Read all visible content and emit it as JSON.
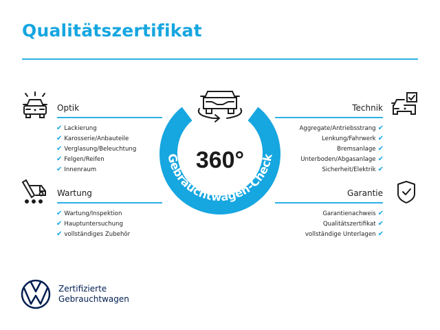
{
  "title": "Qualitätszertifikat",
  "colors": {
    "accent": "#16a6e0",
    "brand": "#001e50",
    "text": "#1b1b1b"
  },
  "badge": {
    "value": "360°",
    "ring_text": "Gebrauchtwagen-Check",
    "icon": "car-rotate-icon"
  },
  "sections": {
    "optik": {
      "heading": "Optik",
      "icon": "car-lights-icon",
      "items": [
        "Lackierung",
        "Karosserie/Anbauteile",
        "Verglasung/Beleuchtung",
        "Felgen/Reifen",
        "Innenraum"
      ]
    },
    "wartung": {
      "heading": "Wartung",
      "icon": "service-tool-car-icon",
      "items": [
        "Wartung/Inspektion",
        "Hauptuntersuchung",
        "vollständiges Zubehör"
      ]
    },
    "technik": {
      "heading": "Technik",
      "icon": "car-checkbox-icon",
      "items": [
        "Aggregate/Antriebsstrang",
        "Lenkung/Fahrwerk",
        "Bremsanlage",
        "Unterboden/Abgasanlage",
        "Sicherheit/Elektrik"
      ]
    },
    "garantie": {
      "heading": "Garantie",
      "icon": "shield-check-icon",
      "items": [
        "Garantienachweis",
        "Qualitätszertifikat",
        "vollständige Unterlagen"
      ]
    }
  },
  "check_mark": "✔",
  "footer": {
    "line1": "Zertifizierte",
    "line2": "Gebrauchtwagen",
    "logo": "vw-logo"
  }
}
